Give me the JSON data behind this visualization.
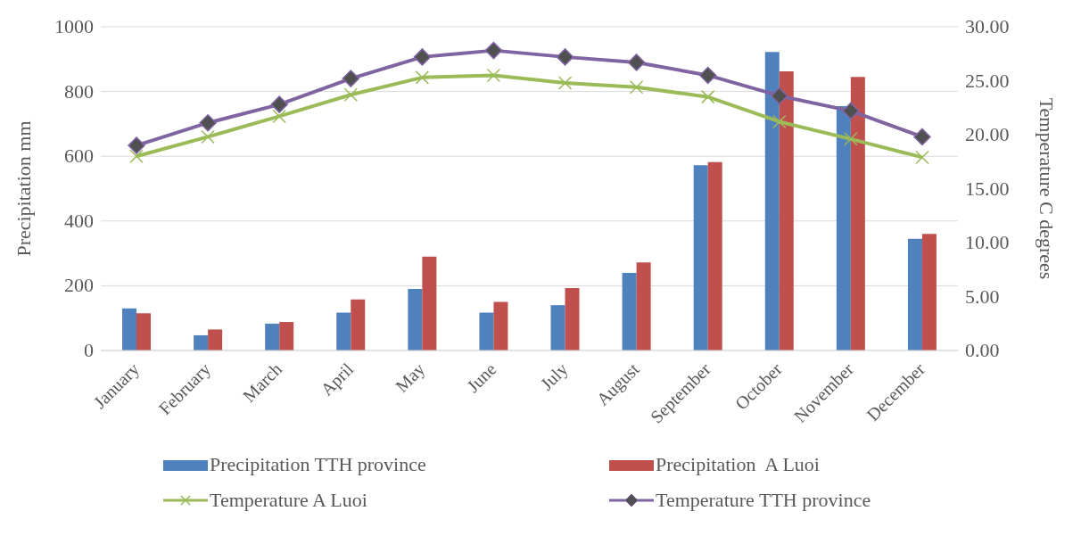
{
  "chart_data": {
    "type": "bar",
    "categories": [
      "January",
      "February",
      "March",
      "April",
      "May",
      "June",
      "July",
      "August",
      "September",
      "October",
      "November",
      "December"
    ],
    "ylabel": "Precipitation mm",
    "y2label": "Temperature C degrees",
    "ylim": [
      0,
      1000
    ],
    "yticks": [
      0,
      200,
      400,
      600,
      800,
      1000
    ],
    "y2lim": [
      0,
      30
    ],
    "y2ticks": [
      {
        "value": 0,
        "label": "0.00"
      },
      {
        "value": 5,
        "label": "5.00"
      },
      {
        "value": 10,
        "label": "10.00"
      },
      {
        "value": 15,
        "label": "15.00"
      },
      {
        "value": 20,
        "label": "20.00"
      },
      {
        "value": 25,
        "label": "25.00"
      },
      {
        "value": 30,
        "label": "30.00"
      }
    ],
    "grid": "y",
    "legend": "bottom",
    "series": [
      {
        "name": "Precipitation TTH province",
        "color": "#4f81bd",
        "values": [
          130,
          47,
          83,
          117,
          190,
          117,
          140,
          240,
          572,
          922,
          755,
          345
        ]
      },
      {
        "name": "Precipitation  A Luoi",
        "color": "#c0504d",
        "values": [
          115,
          65,
          88,
          158,
          290,
          150,
          193,
          272,
          582,
          862,
          845,
          360
        ]
      },
      {
        "name": "Temperature A Luoi",
        "type": "line",
        "axis": "y2",
        "marker": "cross",
        "color": "#9bbb59",
        "values": [
          18.0,
          19.8,
          21.7,
          23.7,
          25.3,
          25.5,
          24.8,
          24.4,
          23.5,
          21.2,
          19.6,
          17.9
        ]
      },
      {
        "name": "Temperature TTH province",
        "type": "line",
        "axis": "y2",
        "marker": "diamond",
        "color": "#8064a2",
        "values": [
          19.0,
          21.1,
          22.8,
          25.2,
          27.2,
          27.8,
          27.2,
          26.7,
          25.5,
          23.6,
          22.2,
          19.8
        ]
      }
    ]
  }
}
